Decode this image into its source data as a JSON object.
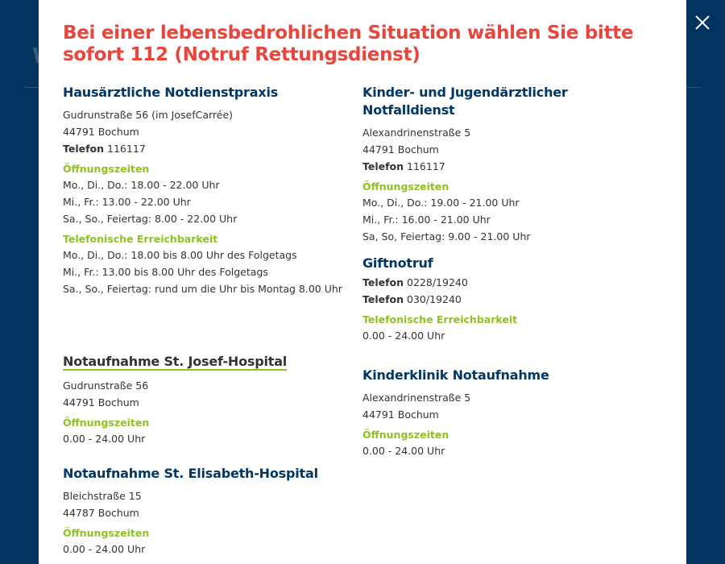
{
  "background": {
    "heading_fragment": "W"
  },
  "title": "Bei einer lebensbedrohlichen Situation wählen Sie bitte sofort 112 (Notruf Rettungsdienst)",
  "close_icon": "close-icon",
  "colors": {
    "title": "#e8453c",
    "heading": "#003764",
    "label": "#8dc21f",
    "backdrop": "#02345f"
  },
  "left": {
    "praxis": {
      "name": "Hausärztliche Notdienstpraxis",
      "street": "Gudrunstraße 56 (im JosefCarrée)",
      "city": "44791 Bochum",
      "tel_label": "Telefon",
      "tel": "116117",
      "hours_label": "Öffnungszeiten",
      "hours": [
        "Mo., Di., Do.: 18.00 - 22.00 Uhr",
        "Mi., Fr.: 13.00 - 22.00 Uhr",
        "Sa., So., Feiertag: 8.00 - 22.00 Uhr"
      ],
      "phone_label": "Telefonische Erreichbarkeit",
      "phone_hours": [
        "Mo., Di., Do.: 18.00 bis 8.00 Uhr des Folgetags",
        "Mi., Fr.: 13.00 bis 8.00 Uhr des Folgetags",
        "Sa., So., Feiertag: rund um die Uhr bis Montag 8.00 Uhr"
      ]
    },
    "josef": {
      "name": "Notaufnahme St. Josef-Hospital",
      "street": "Gudrunstraße 56",
      "city": "44791 Bochum",
      "hours_label": "Öffnungszeiten",
      "hours": "0.00 - 24.00 Uhr"
    },
    "elisabeth": {
      "name": "Notaufnahme St. Elisabeth-Hospital",
      "street": "Bleichstraße 15",
      "city": "44787 Bochum",
      "hours_label": "Öffnungszeiten",
      "hours": "0.00 - 24.00 Uhr"
    }
  },
  "right": {
    "kinder": {
      "name": "Kinder- und Jugendärztlicher Notfalldienst",
      "street": "Alexandrinenstraße 5",
      "city": "44791 Bochum",
      "tel_label": "Telefon",
      "tel": "116117",
      "hours_label": "Öffnungszeiten",
      "hours": [
        "Mo., Di., Do.: 19.00 - 21.00 Uhr",
        "Mi., Fr.: 16.00 - 21.00 Uhr",
        "Sa, So, Feiertag: 9.00 - 21.00 Uhr"
      ]
    },
    "gift": {
      "name": "Giftnotruf",
      "tel_label": "Telefon",
      "tels": [
        "0228/19240",
        "030/19240"
      ],
      "phone_label": "Telefonische Erreichbarkeit",
      "phone_hours": "0.00 - 24.00 Uhr"
    },
    "klinik": {
      "name": "Kinderklinik Notaufnahme",
      "street": "Alexandrinenstraße 5",
      "city": "44791 Bochum",
      "hours_label": "Öffnungszeiten",
      "hours": "0.00 - 24.00 Uhr"
    }
  }
}
